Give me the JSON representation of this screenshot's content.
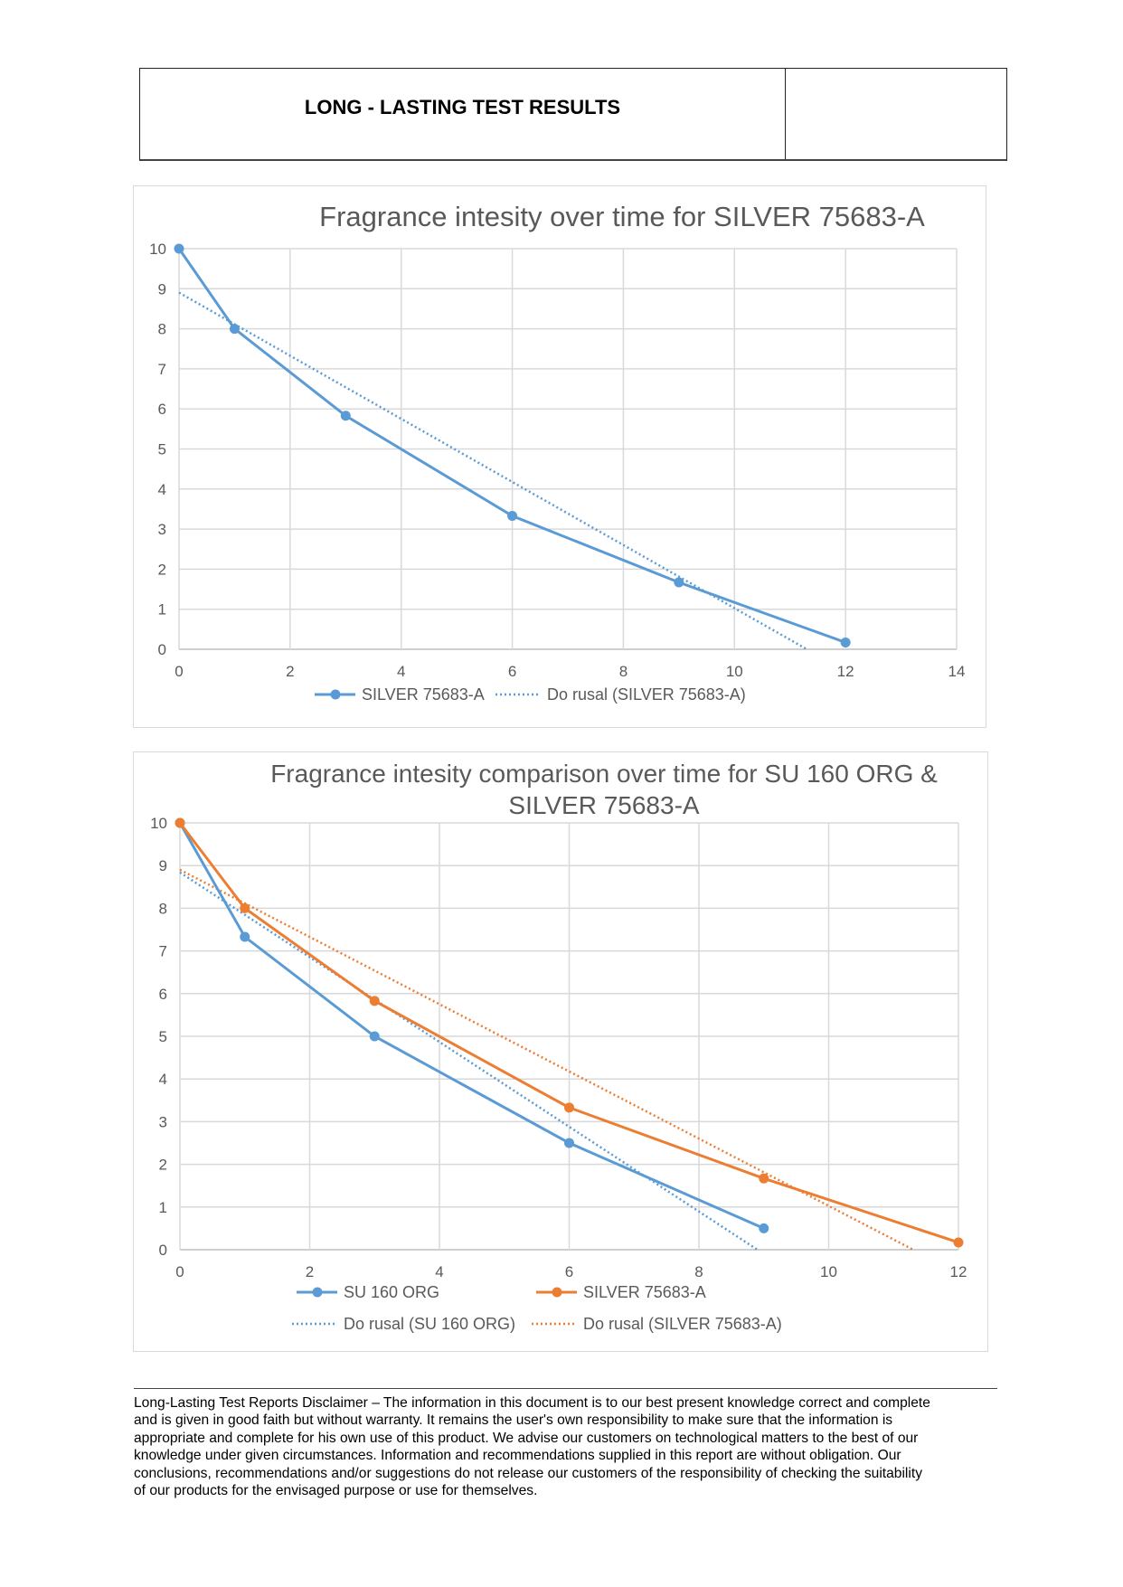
{
  "header": {
    "title": "LONG - LASTING TEST RESULTS"
  },
  "chart_data": [
    {
      "type": "line",
      "title": "Fragrance intesity over time for SILVER 75683-A",
      "xlim": [
        0,
        14
      ],
      "ylim": [
        0,
        10
      ],
      "xticks": [
        "0",
        "2",
        "4",
        "6",
        "8",
        "10",
        "12",
        "14"
      ],
      "yticks": [
        "0",
        "1",
        "2",
        "3",
        "4",
        "5",
        "6",
        "7",
        "8",
        "9",
        "10"
      ],
      "grid": true,
      "legend": "bottom",
      "series": [
        {
          "name": "SILVER 75683-A",
          "color": "#5b9bd5",
          "x": [
            0,
            1,
            3,
            6,
            9,
            12
          ],
          "y": [
            10,
            8,
            5.83,
            3.33,
            1.67,
            0.17
          ]
        }
      ],
      "trendlines": [
        {
          "name": "Do rusal (SILVER 75683-A)",
          "color": "#5b9bd5",
          "of": 0
        }
      ]
    },
    {
      "type": "line",
      "title": "Fragrance intesity comparison over time for SU 160 ORG & SILVER 75683-A",
      "xlim": [
        0,
        12
      ],
      "ylim": [
        0,
        10
      ],
      "xticks": [
        "0",
        "2",
        "4",
        "6",
        "8",
        "10",
        "12"
      ],
      "yticks": [
        "0",
        "1",
        "2",
        "3",
        "4",
        "5",
        "6",
        "7",
        "8",
        "9",
        "10"
      ],
      "grid": true,
      "legend": "bottom",
      "series": [
        {
          "name": "SU 160 ORG",
          "color": "#5b9bd5",
          "x": [
            0,
            1,
            3,
            6,
            9
          ],
          "y": [
            10,
            7.33,
            5,
            2.5,
            0.5
          ]
        },
        {
          "name": "SILVER 75683-A",
          "color": "#ed7d31",
          "x": [
            0,
            1,
            3,
            6,
            9,
            12
          ],
          "y": [
            10,
            8,
            5.83,
            3.33,
            1.67,
            0.17
          ]
        }
      ],
      "trendlines": [
        {
          "name": "Do rusal (SU 160 ORG)",
          "color": "#5b9bd5",
          "of": 0
        },
        {
          "name": "Do rusal (SILVER 75683-A)",
          "color": "#ed7d31",
          "of": 1
        }
      ]
    }
  ],
  "disclaimer": [
    "Long-Lasting Test Reports Disclaimer – The information in this document is to our best present knowledge correct and complete",
    "and is given in good faith but without warranty. It remains the user's own responsibility to make sure that the information is",
    "appropriate and complete for his own use of this product. We advise our customers on technological matters to the best of our",
    "knowledge under given circumstances. Information and recommendations supplied in this report are without obligation. Our",
    "conclusions, recommendations and/or suggestions do not release our customers of the responsibility of checking the suitability",
    "of our products for the envisaged purpose or use for themselves."
  ]
}
